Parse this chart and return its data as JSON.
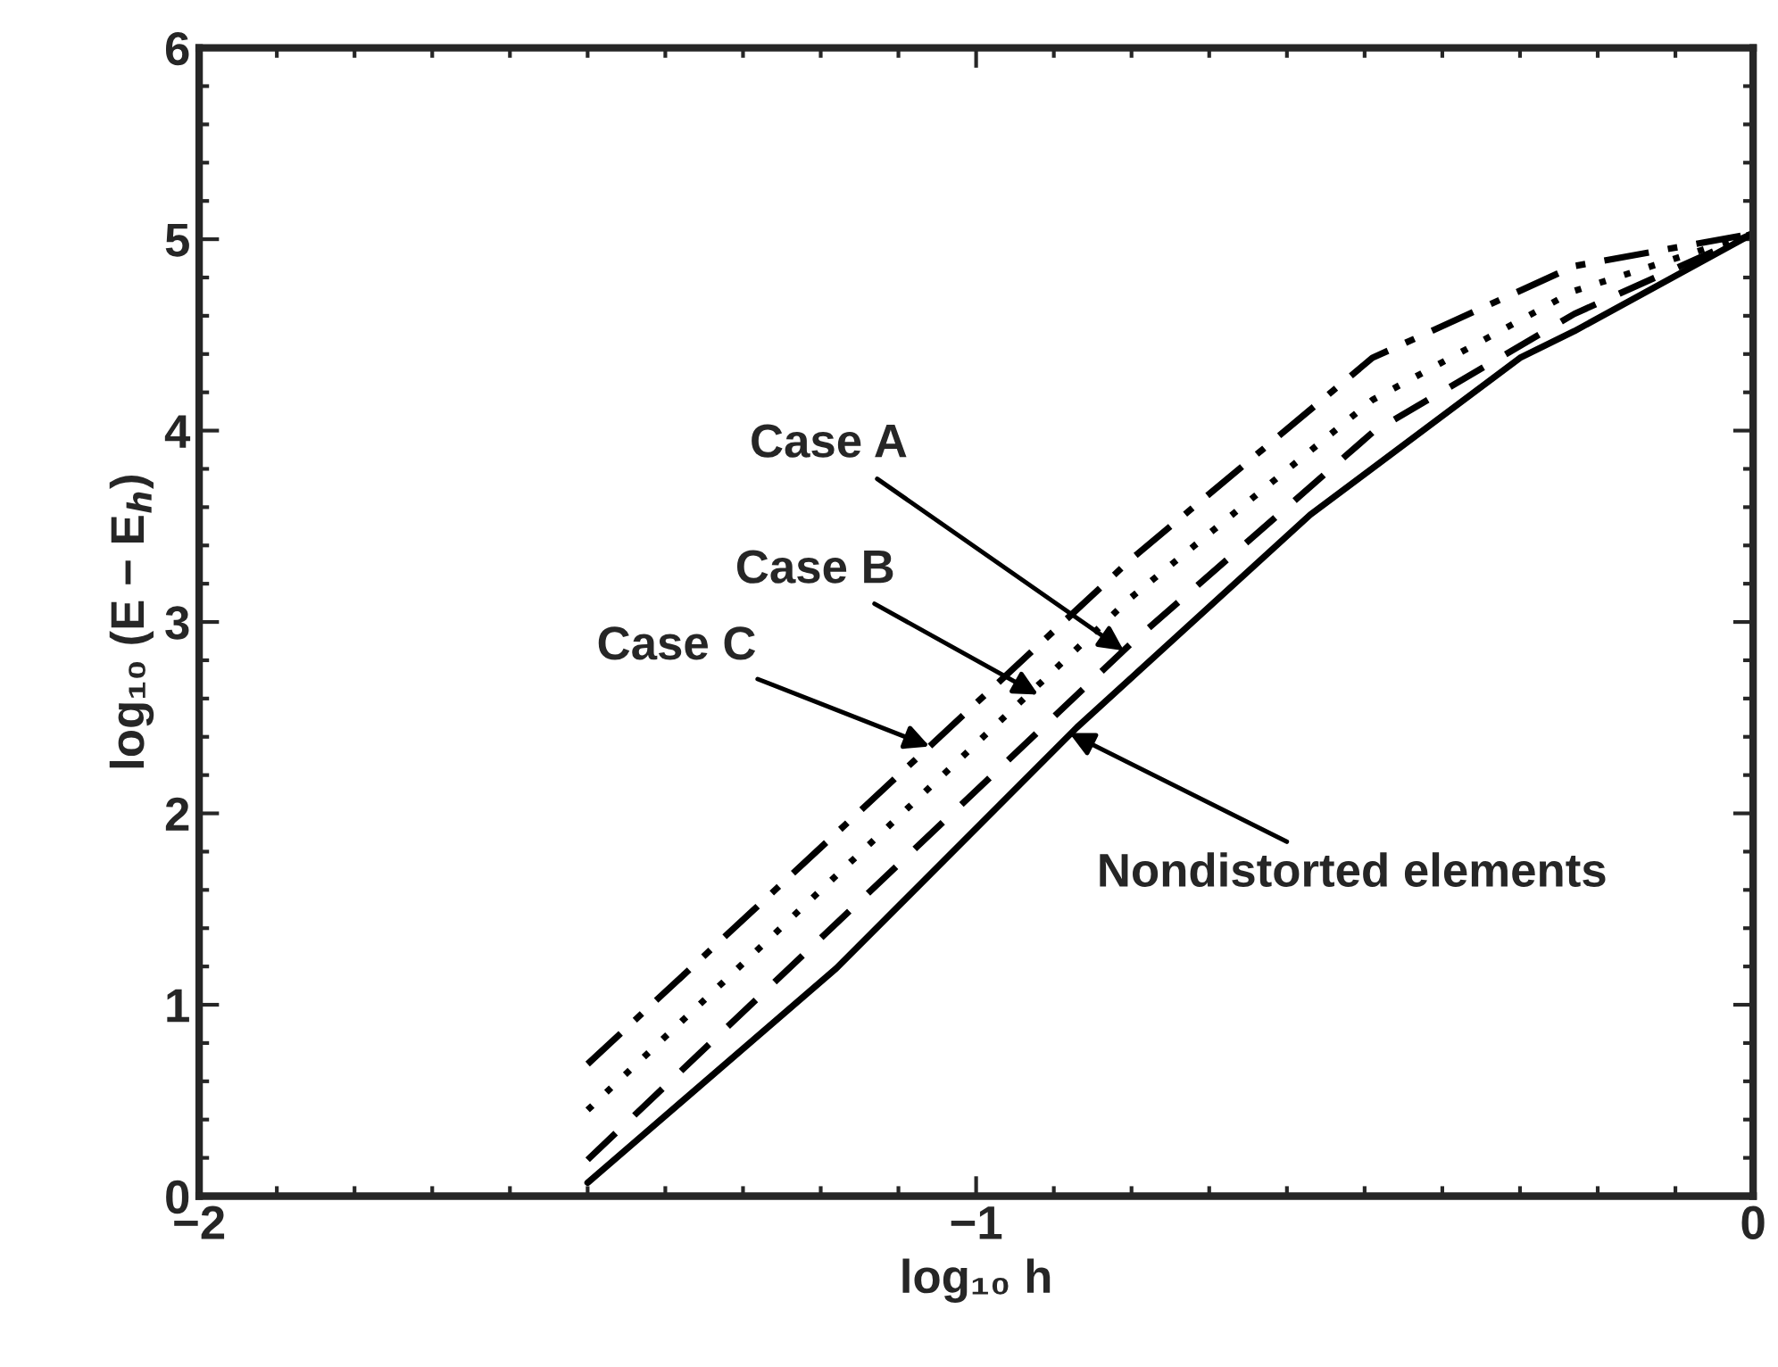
{
  "chart_data": {
    "type": "line",
    "xlabel": "log₁₀ h",
    "ylabel": "log₁₀ (E − E$_{h}$)",
    "xlim": [
      -2,
      0
    ],
    "ylim": [
      0,
      6
    ],
    "xticks": [
      -2,
      -1,
      0
    ],
    "yticks": [
      0,
      1,
      2,
      3,
      4,
      5,
      6
    ],
    "grid": false,
    "legend": false,
    "marker": "none",
    "series": [
      {
        "color": "#000000",
        "line_style": "solid",
        "x": [
          -1.5,
          -1.18,
          -0.87,
          -0.57,
          -0.3,
          -0.23,
          0
        ],
        "values": [
          0.07,
          1.19,
          2.45,
          3.56,
          4.38,
          4.52,
          5.03
        ]
      },
      {
        "color": "#000000",
        "line_style": "dashed",
        "x": [
          -1.5,
          -0.8,
          -0.49,
          -0.23,
          0
        ],
        "values": [
          0.19,
          2.89,
          3.99,
          4.61,
          5.03
        ]
      },
      {
        "color": "#000000",
        "line_style": "dotted",
        "x": [
          -1.5,
          -0.8,
          -0.49,
          -0.23,
          0
        ],
        "values": [
          0.45,
          3.13,
          4.16,
          4.73,
          5.03
        ]
      },
      {
        "color": "#000000",
        "line_style": "dashdot",
        "x": [
          -1.5,
          -0.8,
          -0.49,
          -0.23,
          0
        ],
        "values": [
          0.69,
          3.33,
          4.38,
          4.86,
          5.03
        ]
      }
    ],
    "annotations": [
      {
        "text": "Case A",
        "x": -0.81,
        "y": 2.85
      },
      {
        "text": "Case B",
        "x": -0.92,
        "y": 2.62
      },
      {
        "text": "Case C",
        "x": -1.06,
        "y": 2.35
      },
      {
        "text": "Nondistorted elements",
        "x": -0.88,
        "y": 2.42
      }
    ]
  }
}
